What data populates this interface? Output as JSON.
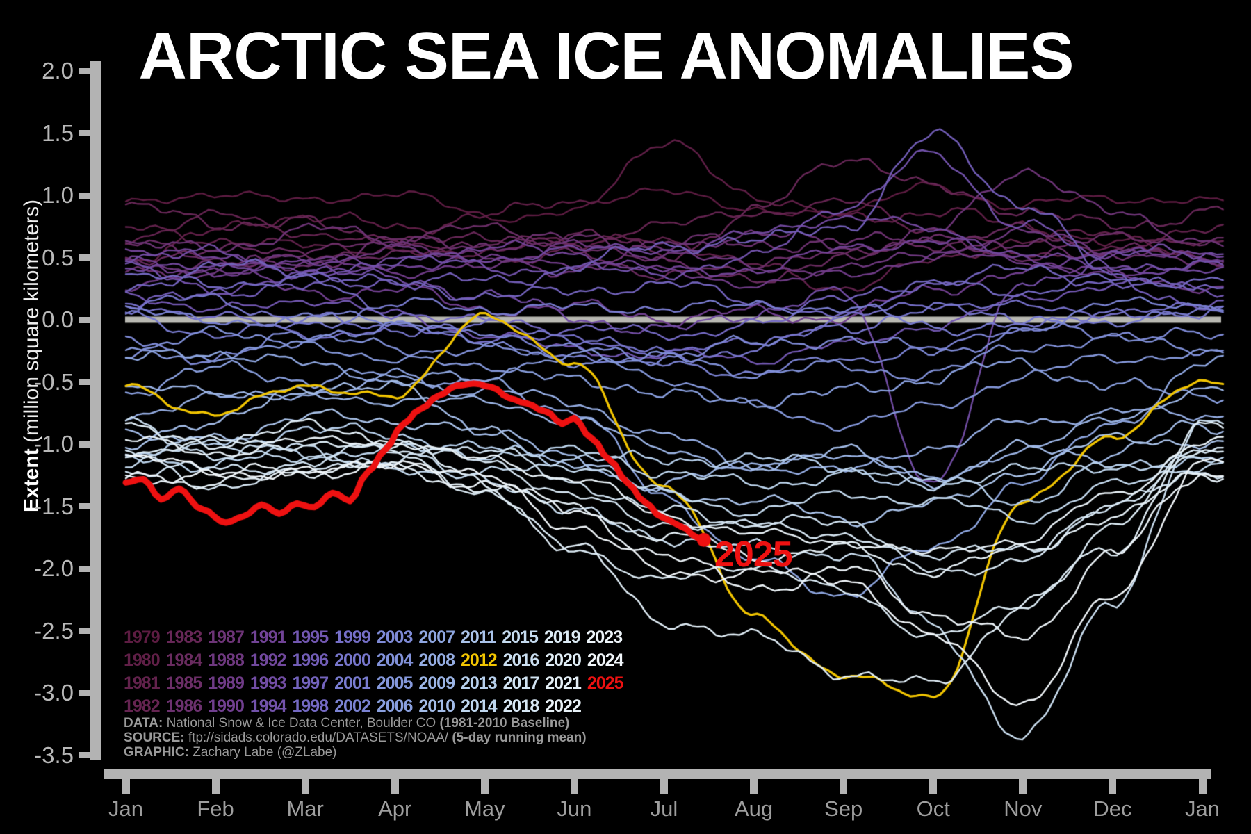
{
  "title": "ARCTIC SEA ICE ANOMALIES",
  "annotation_2025": "2025",
  "y_axis": {
    "label_bold": "Extent",
    "label_rest": " (million square kilometers)",
    "ticks": [
      "2.0",
      "1.5",
      "1.0",
      "0.5",
      "0.0",
      "-0.5",
      "-1.0",
      "-1.5",
      "-2.0",
      "-2.5",
      "-3.0",
      "-3.5"
    ]
  },
  "x_axis": {
    "months": [
      "Jan",
      "Feb",
      "Mar",
      "Apr",
      "May",
      "Jun",
      "Jul",
      "Aug",
      "Sep",
      "Oct",
      "Nov",
      "Dec",
      "Jan"
    ]
  },
  "legend": {
    "rows": [
      [
        "1979",
        "1983",
        "1987",
        "1991",
        "1995",
        "1999",
        "2003",
        "2007",
        "2011",
        "2015",
        "2019",
        "2023"
      ],
      [
        "1980",
        "1984",
        "1988",
        "1992",
        "1996",
        "2000",
        "2004",
        "2008",
        "2012",
        "2016",
        "2020",
        "2024"
      ],
      [
        "1981",
        "1985",
        "1989",
        "1993",
        "1997",
        "2001",
        "2005",
        "2009",
        "2013",
        "2017",
        "2021",
        "2025"
      ],
      [
        "1982",
        "1986",
        "1990",
        "1994",
        "1998",
        "2002",
        "2006",
        "2010",
        "2014",
        "2018",
        "2022"
      ]
    ]
  },
  "attribution": {
    "lines": [
      [
        {
          "text": "DATA: ",
          "bold": true
        },
        {
          "text": "National Snow & Ice Data Center, Boulder CO ",
          "bold": false
        },
        {
          "text": "(1981-2010 Baseline)",
          "bold": true
        }
      ],
      [
        {
          "text": "SOURCE: ",
          "bold": true
        },
        {
          "text": "ftp://sidads.colorado.edu/DATASETS/NOAA/ ",
          "bold": false
        },
        {
          "text": "(5-day running mean)",
          "bold": true
        }
      ],
      [
        {
          "text": "GRAPHIC: ",
          "bold": true
        },
        {
          "text": "Zachary Labe (@ZLabe)",
          "bold": false
        }
      ]
    ]
  },
  "colors": {
    "background": "#000000",
    "axis": "#b3b3b3",
    "tick_label": "#b8b8b8",
    "month_label": "#9e9e9e",
    "zero_line": "#b8b8b2",
    "title": "#ffffff",
    "attribution": "#9a9a9a",
    "highlight_2012": "#f2c500",
    "highlight_2025": "#ee1111"
  },
  "chart_data": {
    "type": "line",
    "title": "ARCTIC SEA ICE ANOMALIES",
    "ylabel": "Extent (million square kilometers)",
    "ylim": [
      -3.5,
      2.0
    ],
    "yticks": [
      2.0,
      1.5,
      1.0,
      0.5,
      0.0,
      -0.5,
      -1.0,
      -1.5,
      -2.0,
      -2.5,
      -3.0,
      -3.5
    ],
    "x_months": [
      "Jan",
      "Feb",
      "Mar",
      "Apr",
      "May",
      "Jun",
      "Jul",
      "Aug",
      "Sep",
      "Oct",
      "Nov",
      "Dec",
      "Jan"
    ],
    "baseline": "1981-2010",
    "smoothing": "5-day running mean",
    "zero_line": true,
    "legend_position": "lower-left",
    "series": [
      {
        "name": "1979",
        "color": "#5d1c42",
        "monthly": [
          0.95,
          1.05,
          0.92,
          1.0,
          0.85,
          0.9,
          1.05,
          0.82,
          0.9,
          1.1,
          0.9,
          0.95,
          0.95
        ]
      },
      {
        "name": "1980",
        "color": "#601f47",
        "monthly": [
          0.55,
          0.7,
          0.8,
          0.72,
          0.9,
          0.95,
          1.35,
          1.0,
          0.85,
          0.9,
          0.7,
          0.6,
          0.55
        ]
      },
      {
        "name": "1981",
        "color": "#62224c",
        "monthly": [
          0.75,
          0.62,
          0.55,
          0.6,
          0.5,
          0.55,
          0.62,
          0.45,
          0.3,
          0.45,
          0.6,
          0.7,
          0.75
        ]
      },
      {
        "name": "1982",
        "color": "#652451",
        "monthly": [
          0.65,
          0.8,
          0.7,
          0.65,
          0.55,
          0.6,
          0.75,
          0.9,
          0.95,
          0.7,
          0.5,
          0.6,
          0.65
        ]
      },
      {
        "name": "1983",
        "color": "#672757",
        "monthly": [
          0.85,
          0.75,
          0.8,
          0.7,
          0.6,
          0.65,
          0.55,
          0.9,
          1.3,
          1.0,
          0.9,
          0.8,
          0.85
        ]
      },
      {
        "name": "1984",
        "color": "#692b5f",
        "monthly": [
          0.45,
          0.55,
          0.6,
          0.5,
          0.6,
          0.55,
          0.4,
          0.35,
          0.45,
          0.6,
          0.75,
          0.6,
          0.45
        ]
      },
      {
        "name": "1985",
        "color": "#6b2e67",
        "monthly": [
          0.6,
          0.5,
          0.55,
          0.65,
          0.7,
          0.6,
          0.5,
          0.4,
          0.5,
          0.65,
          0.55,
          0.65,
          0.6
        ]
      },
      {
        "name": "1986",
        "color": "#6c316f",
        "monthly": [
          0.4,
          0.5,
          0.45,
          0.55,
          0.6,
          0.7,
          0.65,
          0.55,
          0.6,
          0.7,
          0.6,
          0.5,
          0.4
        ]
      },
      {
        "name": "1987",
        "color": "#6d3477",
        "monthly": [
          0.65,
          0.6,
          0.7,
          0.6,
          0.5,
          0.45,
          0.55,
          0.65,
          0.6,
          0.75,
          1.2,
          0.8,
          0.65
        ]
      },
      {
        "name": "1988",
        "color": "#6e387f",
        "monthly": [
          0.5,
          0.4,
          0.45,
          0.55,
          0.5,
          0.6,
          0.5,
          0.4,
          0.45,
          0.55,
          0.65,
          0.55,
          0.5
        ]
      },
      {
        "name": "1989",
        "color": "#6f3b87",
        "monthly": [
          0.3,
          0.35,
          0.45,
          0.4,
          0.5,
          0.45,
          0.35,
          0.3,
          0.4,
          0.5,
          0.45,
          0.35,
          0.3
        ]
      },
      {
        "name": "1990",
        "color": "#703f8f",
        "monthly": [
          0.45,
          0.35,
          0.2,
          0.3,
          0.1,
          0.05,
          0.0,
          0.1,
          0.05,
          0.2,
          0.35,
          0.45,
          0.45
        ]
      },
      {
        "name": "1991",
        "color": "#714396",
        "monthly": [
          0.55,
          0.45,
          0.5,
          0.45,
          0.55,
          0.5,
          0.4,
          0.45,
          0.55,
          0.6,
          0.5,
          0.55,
          0.55
        ]
      },
      {
        "name": "1992",
        "color": "#71489d",
        "monthly": [
          0.35,
          0.45,
          0.4,
          0.5,
          0.45,
          0.55,
          0.6,
          0.7,
          0.8,
          0.7,
          0.55,
          0.45,
          0.35
        ]
      },
      {
        "name": "1993",
        "color": "#724da4",
        "monthly": [
          0.5,
          0.55,
          0.45,
          0.3,
          0.15,
          0.05,
          -0.05,
          0.05,
          0.15,
          -1.3,
          0.35,
          0.5,
          0.5
        ]
      },
      {
        "name": "1994",
        "color": "#7252ab",
        "monthly": [
          0.4,
          0.3,
          0.35,
          0.45,
          0.4,
          0.45,
          0.4,
          0.45,
          0.9,
          1.35,
          0.8,
          0.4,
          0.4
        ]
      },
      {
        "name": "1995",
        "color": "#7257b1",
        "monthly": [
          0.25,
          0.1,
          0.15,
          0.0,
          -0.1,
          -0.2,
          -0.3,
          -0.35,
          -0.2,
          0.0,
          0.15,
          0.25,
          0.25
        ]
      },
      {
        "name": "1996",
        "color": "#725db7",
        "monthly": [
          0.15,
          0.25,
          0.2,
          0.3,
          0.35,
          0.45,
          0.55,
          0.6,
          0.8,
          1.5,
          0.9,
          0.3,
          0.15
        ]
      },
      {
        "name": "1997",
        "color": "#7363bd",
        "monthly": [
          0.3,
          0.4,
          0.35,
          0.3,
          0.25,
          0.2,
          0.25,
          0.15,
          0.2,
          0.3,
          0.35,
          0.3,
          0.3
        ]
      },
      {
        "name": "1998",
        "color": "#7469c3",
        "monthly": [
          0.35,
          0.25,
          0.3,
          0.1,
          0.0,
          -0.1,
          -0.15,
          0.0,
          0.1,
          0.25,
          0.2,
          0.35,
          0.35
        ]
      },
      {
        "name": "1999",
        "color": "#756fc8",
        "monthly": [
          0.1,
          0.0,
          -0.1,
          -0.05,
          -0.15,
          -0.2,
          -0.25,
          -0.15,
          0.0,
          0.1,
          0.1,
          0.1,
          0.1
        ]
      },
      {
        "name": "2000",
        "color": "#7776cc",
        "monthly": [
          0.05,
          0.15,
          0.05,
          -0.05,
          -0.1,
          -0.15,
          -0.25,
          -0.2,
          -0.1,
          0.05,
          0.05,
          0.05,
          0.05
        ]
      },
      {
        "name": "2001",
        "color": "#797cd0",
        "monthly": [
          0.0,
          -0.1,
          0.0,
          0.1,
          0.05,
          0.1,
          0.15,
          0.1,
          0.05,
          -0.05,
          0.0,
          0.0,
          0.0
        ]
      },
      {
        "name": "2002",
        "color": "#7b83d3",
        "monthly": [
          0.1,
          0.0,
          0.05,
          -0.05,
          -0.15,
          -0.25,
          -0.35,
          -0.45,
          -0.35,
          -0.2,
          -0.05,
          0.1,
          0.1
        ]
      },
      {
        "name": "2003",
        "color": "#7e8ad6",
        "monthly": [
          -0.15,
          -0.25,
          -0.15,
          -0.1,
          -0.15,
          -0.2,
          -0.3,
          -0.25,
          -0.15,
          -0.2,
          -0.1,
          -0.15,
          -0.15
        ]
      },
      {
        "name": "2004",
        "color": "#8191d9",
        "monthly": [
          -0.2,
          -0.1,
          -0.2,
          -0.25,
          -0.2,
          -0.3,
          -0.35,
          -0.45,
          -0.35,
          -0.4,
          -0.25,
          -0.2,
          -0.2
        ]
      },
      {
        "name": "2005",
        "color": "#8598db",
        "monthly": [
          -0.25,
          -0.3,
          -0.25,
          -0.3,
          -0.35,
          -0.3,
          -0.5,
          -0.7,
          -0.8,
          -0.7,
          -0.5,
          -0.3,
          -0.25
        ]
      },
      {
        "name": "2006",
        "color": "#899fde",
        "monthly": [
          -0.55,
          -0.45,
          -0.5,
          -0.4,
          -0.45,
          -0.5,
          -0.65,
          -0.6,
          -0.55,
          -0.5,
          -0.4,
          -0.5,
          -0.55
        ]
      },
      {
        "name": "2007",
        "color": "#8ea6e0",
        "monthly": [
          -0.35,
          -0.3,
          -0.35,
          -0.4,
          -0.5,
          -0.8,
          -1.4,
          -1.9,
          -2.2,
          -1.9,
          -1.3,
          -0.8,
          -0.35
        ]
      },
      {
        "name": "2008",
        "color": "#95ade3",
        "monthly": [
          -0.8,
          -0.65,
          -0.55,
          -0.5,
          -0.6,
          -0.7,
          -0.9,
          -1.15,
          -1.25,
          -1.05,
          -0.8,
          -0.7,
          -0.8
        ]
      },
      {
        "name": "2009",
        "color": "#9cb5e6",
        "monthly": [
          -0.6,
          -0.55,
          -0.6,
          -0.65,
          -0.7,
          -0.8,
          -1.0,
          -1.2,
          -1.1,
          -1.3,
          -1.0,
          -0.8,
          -0.6
        ]
      },
      {
        "name": "2010",
        "color": "#a3bce8",
        "monthly": [
          -0.9,
          -0.8,
          -0.5,
          -0.6,
          -0.9,
          -1.1,
          -1.3,
          -1.2,
          -1.1,
          -1.25,
          -1.0,
          -1.1,
          -0.9
        ]
      },
      {
        "name": "2011",
        "color": "#aac3ea",
        "monthly": [
          -1.0,
          -0.9,
          -0.8,
          -0.85,
          -0.9,
          -1.1,
          -1.4,
          -1.5,
          -1.6,
          -1.45,
          -1.2,
          -1.0,
          -1.0
        ]
      },
      {
        "name": "2012",
        "color": "#f2c500",
        "lw": 3.2,
        "noise": 0.045,
        "monthly": [
          -0.5,
          -0.75,
          -0.55,
          -0.65,
          0.08,
          -0.35,
          -1.35,
          -2.4,
          -2.85,
          -3.0,
          -1.5,
          -0.95,
          -0.5
        ]
      },
      {
        "name": "2013",
        "color": "#b7d0ed",
        "monthly": [
          -1.05,
          -1.0,
          -0.95,
          -0.9,
          -1.0,
          -1.1,
          -1.2,
          -1.1,
          -1.15,
          -1.3,
          -1.5,
          -1.2,
          -1.05
        ]
      },
      {
        "name": "2014",
        "color": "#bed6ee",
        "monthly": [
          -1.1,
          -1.2,
          -1.1,
          -1.0,
          -1.05,
          -1.1,
          -1.25,
          -1.3,
          -1.2,
          -1.35,
          -1.25,
          -1.15,
          -1.1
        ]
      },
      {
        "name": "2015",
        "color": "#c5dbf0",
        "monthly": [
          -1.15,
          -1.05,
          -1.1,
          -1.15,
          -1.25,
          -1.2,
          -1.4,
          -1.5,
          -1.4,
          -1.5,
          -1.6,
          -1.3,
          -1.15
        ]
      },
      {
        "name": "2016",
        "color": "#cbdff1",
        "monthly": [
          -0.9,
          -1.1,
          -1.0,
          -1.1,
          -1.3,
          -1.6,
          -1.7,
          -1.8,
          -1.9,
          -2.5,
          -3.35,
          -2.2,
          -0.9
        ]
      },
      {
        "name": "2017",
        "color": "#d1e3f2",
        "monthly": [
          -1.25,
          -1.2,
          -1.1,
          -1.0,
          -1.1,
          -1.3,
          -1.5,
          -1.6,
          -1.7,
          -1.9,
          -1.8,
          -1.5,
          -1.25
        ]
      },
      {
        "name": "2018",
        "color": "#d7e7f4",
        "monthly": [
          -1.1,
          -1.3,
          -1.2,
          -1.1,
          -1.15,
          -1.4,
          -1.6,
          -1.7,
          -1.75,
          -2.0,
          -1.9,
          -1.5,
          -1.1
        ]
      },
      {
        "name": "2019",
        "color": "#dcebf5",
        "monthly": [
          -1.05,
          -0.95,
          -1.0,
          -1.1,
          -1.4,
          -1.8,
          -2.1,
          -2.0,
          -2.2,
          -2.5,
          -2.3,
          -1.7,
          -1.05
        ]
      },
      {
        "name": "2020",
        "color": "#e0edf6",
        "monthly": [
          -0.85,
          -0.95,
          -0.9,
          -1.0,
          -1.3,
          -1.8,
          -2.45,
          -2.6,
          -2.8,
          -2.9,
          -2.3,
          -1.9,
          -0.85
        ]
      },
      {
        "name": "2021",
        "color": "#e5f0f7",
        "monthly": [
          -1.2,
          -1.35,
          -1.25,
          -1.2,
          -1.3,
          -1.5,
          -1.8,
          -1.9,
          -1.8,
          -2.0,
          -1.9,
          -1.6,
          -1.2
        ]
      },
      {
        "name": "2022",
        "color": "#e9f2f8",
        "monthly": [
          -0.95,
          -1.1,
          -1.0,
          -0.95,
          -1.1,
          -1.3,
          -1.6,
          -1.7,
          -1.75,
          -1.9,
          -1.8,
          -1.4,
          -0.95
        ]
      },
      {
        "name": "2023",
        "color": "#edf4f9",
        "monthly": [
          -1.25,
          -1.3,
          -1.2,
          -1.15,
          -1.3,
          -1.6,
          -1.9,
          -2.1,
          -2.0,
          -2.4,
          -2.6,
          -1.8,
          -1.25
        ]
      },
      {
        "name": "2024",
        "color": "#f1f6fa",
        "monthly": [
          -1.15,
          -1.25,
          -1.2,
          -1.1,
          -1.3,
          -1.7,
          -2.0,
          -2.0,
          -2.1,
          -2.6,
          -3.05,
          -2.2,
          -1.15
        ]
      },
      {
        "name": "2025",
        "color": "#ee1111",
        "lw": 9,
        "noise": 0.012,
        "end_dot": true,
        "days": [
          0,
          6,
          12,
          18,
          26,
          34,
          40,
          46,
          52,
          58,
          64,
          70,
          76,
          82,
          88,
          94,
          100,
          106,
          112,
          118,
          124,
          130,
          136,
          142,
          148,
          152,
          158,
          164,
          170,
          176,
          182,
          186,
          190,
          193,
          196
        ],
        "values": [
          -1.32,
          -1.28,
          -1.45,
          -1.36,
          -1.52,
          -1.64,
          -1.58,
          -1.48,
          -1.56,
          -1.47,
          -1.49,
          -1.38,
          -1.45,
          -1.22,
          -1.05,
          -0.85,
          -0.72,
          -0.62,
          -0.54,
          -0.51,
          -0.54,
          -0.64,
          -0.68,
          -0.74,
          -0.85,
          -0.8,
          -0.95,
          -1.12,
          -1.3,
          -1.45,
          -1.58,
          -1.63,
          -1.68,
          -1.74,
          -1.77
        ]
      }
    ]
  }
}
